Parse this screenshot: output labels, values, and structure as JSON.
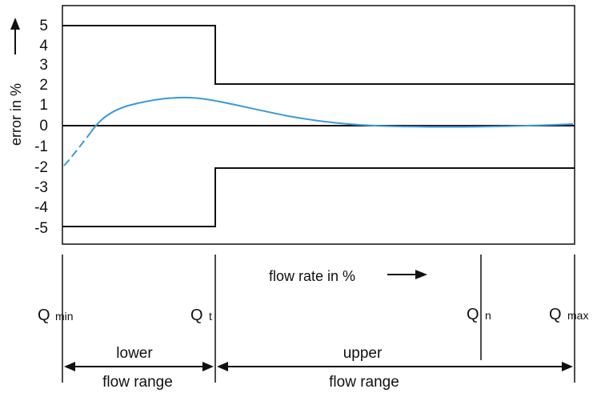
{
  "chart_data": {
    "type": "line",
    "ylabel": "error in %",
    "xlabel": "flow rate in %",
    "ylim": [
      -5.5,
      6
    ],
    "y_ticks": [
      "5",
      "4",
      "3",
      "2",
      "1",
      "0",
      "-1",
      "-2",
      "-3",
      "-4",
      "-5"
    ],
    "x_markers": [
      {
        "main": "Q",
        "sub": "min"
      },
      {
        "main": "Q",
        "sub": "t"
      },
      {
        "main": "Q",
        "sub": "n"
      },
      {
        "main": "Q",
        "sub": "max"
      }
    ],
    "ranges": [
      {
        "top": "lower",
        "bottom": "flow range"
      },
      {
        "top": "upper",
        "bottom": "flow range"
      }
    ],
    "error_limits": {
      "lower_range": [
        -5,
        5
      ],
      "upper_range": [
        -2,
        2
      ]
    },
    "colors": {
      "curve": "#3a9ad9",
      "frame": "#111111"
    }
  }
}
